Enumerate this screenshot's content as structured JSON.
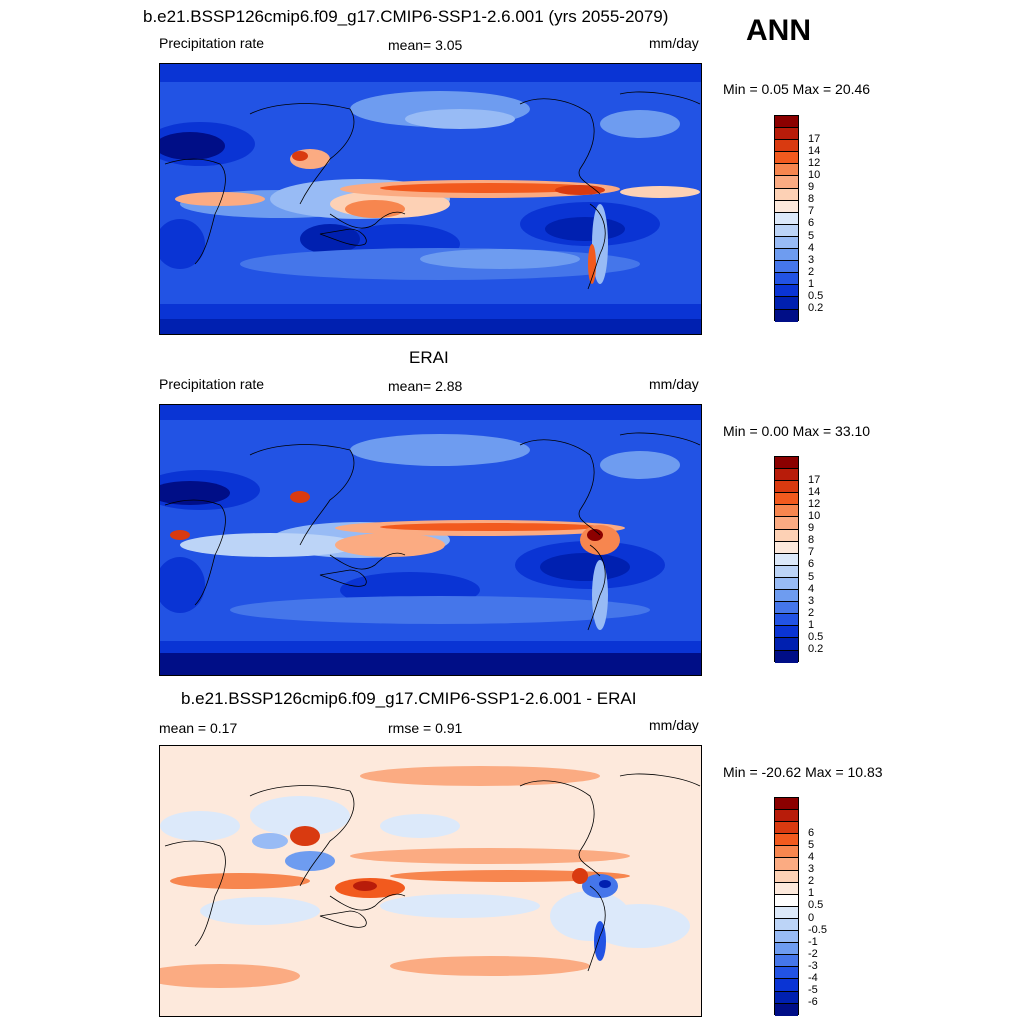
{
  "season": "ANN",
  "panels": [
    {
      "title": "b.e21.BSSP126cmip6.f09_g17.CMIP6-SSP1-2.6.001 (yrs 2055-2079)",
      "left_label": "Precipitation rate",
      "center_label": "mean=   3.05",
      "units": "mm/day",
      "minmax": "Min =   0.05 Max =  20.46",
      "colorbar": {
        "colors": [
          "#8b0000",
          "#b81c0a",
          "#d93a10",
          "#f25a1e",
          "#f7864f",
          "#fbab82",
          "#fdd1b5",
          "#fde9dc",
          "#dce9fa",
          "#bcd4f7",
          "#98bbf5",
          "#6e9cf0",
          "#4576ea",
          "#2253e4",
          "#0a34d4",
          "#0020b0",
          "#000e87"
        ],
        "ticks": [
          "17",
          "14",
          "12",
          "10",
          "9",
          "8",
          "7",
          "6",
          "5",
          "4",
          "3",
          "2",
          "1",
          "0.5",
          "0.2"
        ]
      }
    },
    {
      "title": "ERAI",
      "left_label": "Precipitation rate",
      "center_label": "mean=   2.88",
      "units": "mm/day",
      "minmax": "Min =   0.00 Max =  33.10",
      "colorbar": {
        "colors": [
          "#8b0000",
          "#b81c0a",
          "#d93a10",
          "#f25a1e",
          "#f7864f",
          "#fbab82",
          "#fdd1b5",
          "#fde9dc",
          "#dce9fa",
          "#bcd4f7",
          "#98bbf5",
          "#6e9cf0",
          "#4576ea",
          "#2253e4",
          "#0a34d4",
          "#0020b0",
          "#000e87"
        ],
        "ticks": [
          "17",
          "14",
          "12",
          "10",
          "9",
          "8",
          "7",
          "6",
          "5",
          "4",
          "3",
          "2",
          "1",
          "0.5",
          "0.2"
        ]
      }
    },
    {
      "title": "b.e21.BSSP126cmip6.f09_g17.CMIP6-SSP1-2.6.001 - ERAI",
      "left_label": "mean =   0.17",
      "center_label": "rmse =   0.91",
      "units": "mm/day",
      "minmax": "Min = -20.62 Max =  10.83",
      "colorbar": {
        "colors": [
          "#8b0000",
          "#b81c0a",
          "#d93a10",
          "#f25a1e",
          "#f7864f",
          "#fbab82",
          "#fdd1b5",
          "#fde9dc",
          "#ffffff",
          "#dce9fa",
          "#bcd4f7",
          "#98bbf5",
          "#6e9cf0",
          "#4576ea",
          "#2253e4",
          "#0a34d4",
          "#0020b0",
          "#000e87"
        ],
        "ticks": [
          "6",
          "5",
          "4",
          "3",
          "2",
          "1",
          "0.5",
          "0",
          "-0.5",
          "-1",
          "-2",
          "-3",
          "-4",
          "-5",
          "-6"
        ]
      }
    }
  ]
}
